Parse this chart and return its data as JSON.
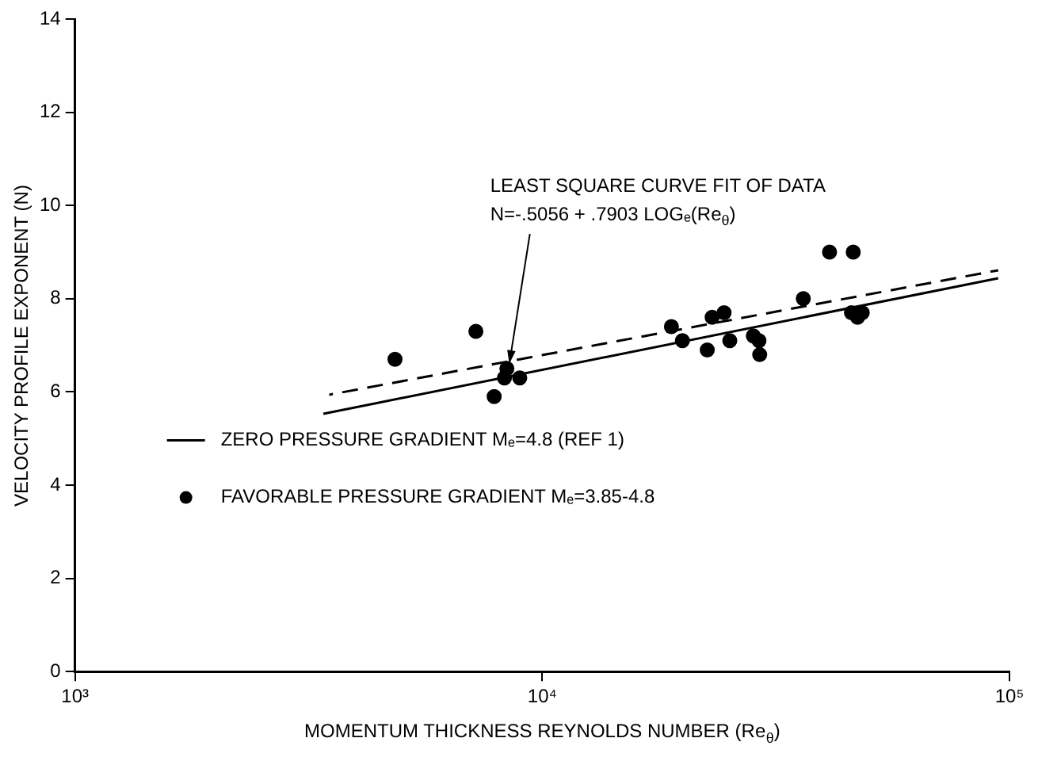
{
  "chart_data": {
    "type": "scatter",
    "xlabel": "MOMENTUM THICKNESS REYNOLDS NUMBER (Re$_{θ}$)",
    "ylabel": "VELOCITY PROFILE EXPONENT (N)",
    "log": "x",
    "xlim": [
      1000,
      100000
    ],
    "xticks": [
      {
        "value": 1000,
        "label": "10³"
      },
      {
        "value": 10000,
        "label": "10⁴"
      },
      {
        "value": 100000,
        "label": "10⁵"
      }
    ],
    "ylim": [
      0,
      14
    ],
    "yticks": [
      0,
      2,
      4,
      6,
      8,
      10,
      12,
      14
    ],
    "grid": false,
    "legend": "left",
    "series": [
      {
        "name": "ZERO PRESSURE GRADIENT Mₑ=4.8 (REF 1)",
        "type": "line",
        "line_style": "solid",
        "marker": "none",
        "color": "#000000",
        "x": [
          3400,
          94600
        ],
        "values": [
          5.53,
          8.44
        ]
      },
      {
        "name": "FAVORABLE PRESSURE GRADIENT Mₑ=3.85-4.8",
        "type": "scatter",
        "marker": "circle",
        "color": "#000000",
        "x": [
          4840,
          7210,
          7890,
          8400,
          8300,
          8950,
          18900,
          19950,
          22550,
          23100,
          24500,
          25200,
          28300,
          29100,
          29200,
          36200,
          41200,
          46300,
          45900,
          47300,
          48400
        ],
        "values": [
          6.7,
          7.3,
          5.9,
          6.5,
          6.3,
          6.3,
          7.4,
          7.1,
          6.9,
          7.6,
          7.7,
          7.1,
          7.2,
          7.1,
          6.8,
          8.0,
          9.0,
          9.0,
          7.7,
          7.6,
          7.7
        ]
      },
      {
        "type": "line",
        "line_style": "dashed",
        "marker": "none",
        "color": "#000000",
        "x": [
          3500,
          94600
        ],
        "values": [
          5.94,
          8.61
        ]
      }
    ],
    "annotations": [
      {
        "text": "LEAST SQUARE CURVE FIT OF DATA\nN=-.5056 + .7903 LOGₑ(Re$_{θ}$)",
        "x": 8500,
        "y": 6.6
      }
    ]
  }
}
